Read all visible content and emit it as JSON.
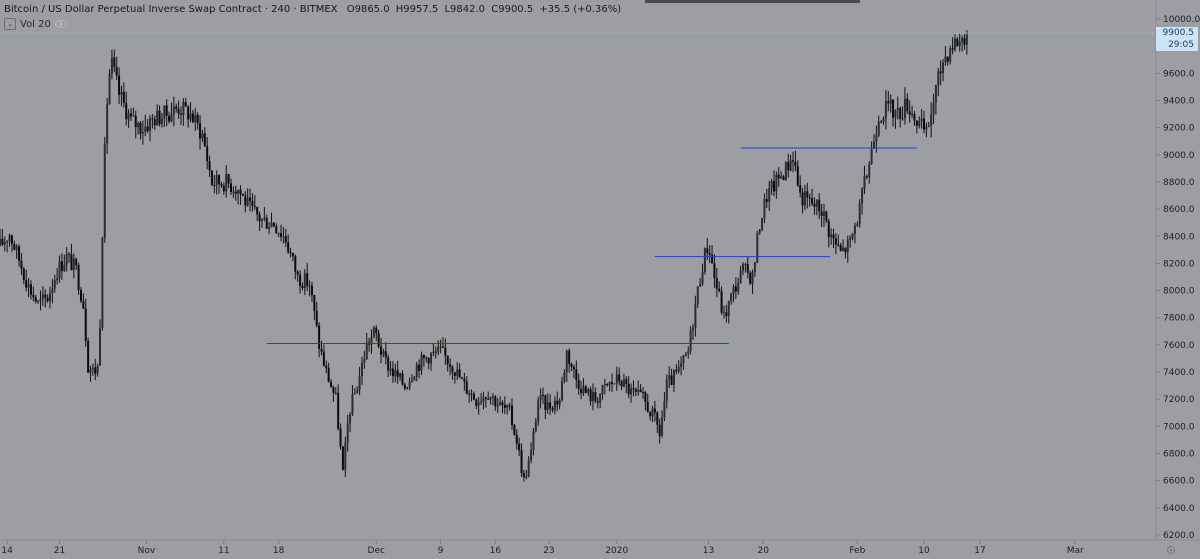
{
  "header": {
    "title": "Bitcoin / US Dollar Perpetual Inverse Swap Contract · 240 · BITMEX",
    "open": "O9865.0",
    "high": "H9957.5",
    "low": "L9842.0",
    "close": "C9900.5",
    "change": "+35.5 (+0.36%)",
    "indicator": "Vol 20"
  },
  "price_tags": {
    "last": "9900.5",
    "countdown": "29:05"
  },
  "colors": {
    "background": "#9d9ea3",
    "candle": "#111114",
    "level_line": "#1f3fcf",
    "price_tag_bg": "#cde3f7",
    "axis_text": "#1e1e22"
  },
  "chart_data": {
    "type": "candlestick",
    "ylim": [
      6200,
      10000
    ],
    "y_ticks": [
      "10000.0",
      "9800.0",
      "9600.0",
      "9400.0",
      "9200.0",
      "9000.0",
      "8800.0",
      "8600.0",
      "8400.0",
      "8200.0",
      "8000.0",
      "7800.0",
      "7600.0",
      "7400.0",
      "7200.0",
      "7000.0",
      "6800.0",
      "6600.0",
      "6400.0",
      "6200.0"
    ],
    "x_ticks": [
      "14",
      "21",
      "Nov",
      "11",
      "18",
      "Dec",
      "9",
      "16",
      "23",
      "2020",
      "13",
      "20",
      "Feb",
      "10",
      "17",
      "Mar"
    ],
    "grid": false,
    "price_path": [
      {
        "x": 0.0,
        "y": 8330
      },
      {
        "x": 0.8,
        "y": 8420
      },
      {
        "x": 1.6,
        "y": 8230
      },
      {
        "x": 2.4,
        "y": 8030
      },
      {
        "x": 3.2,
        "y": 7900
      },
      {
        "x": 4.0,
        "y": 7950
      },
      {
        "x": 4.8,
        "y": 8150
      },
      {
        "x": 5.6,
        "y": 8250
      },
      {
        "x": 6.4,
        "y": 8150
      },
      {
        "x": 7.0,
        "y": 7900
      },
      {
        "x": 7.4,
        "y": 7450
      },
      {
        "x": 7.9,
        "y": 7400
      },
      {
        "x": 8.3,
        "y": 7450
      },
      {
        "x": 8.6,
        "y": 8450
      },
      {
        "x": 8.9,
        "y": 9300
      },
      {
        "x": 9.3,
        "y": 9700
      },
      {
        "x": 10.0,
        "y": 9450
      },
      {
        "x": 11.0,
        "y": 9250
      },
      {
        "x": 12.0,
        "y": 9200
      },
      {
        "x": 13.0,
        "y": 9270
      },
      {
        "x": 14.0,
        "y": 9300
      },
      {
        "x": 15.0,
        "y": 9350
      },
      {
        "x": 16.0,
        "y": 9300
      },
      {
        "x": 17.0,
        "y": 9150
      },
      {
        "x": 17.8,
        "y": 8800
      },
      {
        "x": 19.0,
        "y": 8800
      },
      {
        "x": 20.0,
        "y": 8750
      },
      {
        "x": 21.0,
        "y": 8600
      },
      {
        "x": 22.0,
        "y": 8520
      },
      {
        "x": 23.0,
        "y": 8500
      },
      {
        "x": 24.0,
        "y": 8380
      },
      {
        "x": 25.0,
        "y": 8100
      },
      {
        "x": 26.0,
        "y": 8050
      },
      {
        "x": 26.8,
        "y": 7600
      },
      {
        "x": 27.4,
        "y": 7400
      },
      {
        "x": 28.2,
        "y": 7200
      },
      {
        "x": 28.8,
        "y": 6650
      },
      {
        "x": 29.3,
        "y": 7100
      },
      {
        "x": 30.0,
        "y": 7300
      },
      {
        "x": 30.8,
        "y": 7600
      },
      {
        "x": 31.5,
        "y": 7700
      },
      {
        "x": 32.2,
        "y": 7500
      },
      {
        "x": 33.0,
        "y": 7400
      },
      {
        "x": 34.0,
        "y": 7300
      },
      {
        "x": 35.0,
        "y": 7450
      },
      {
        "x": 36.0,
        "y": 7520
      },
      {
        "x": 37.0,
        "y": 7550
      },
      {
        "x": 38.0,
        "y": 7450
      },
      {
        "x": 39.0,
        "y": 7300
      },
      {
        "x": 40.0,
        "y": 7200
      },
      {
        "x": 41.0,
        "y": 7250
      },
      {
        "x": 42.0,
        "y": 7150
      },
      {
        "x": 42.8,
        "y": 7100
      },
      {
        "x": 43.4,
        "y": 6900
      },
      {
        "x": 44.0,
        "y": 6600
      },
      {
        "x": 44.6,
        "y": 6800
      },
      {
        "x": 45.2,
        "y": 7200
      },
      {
        "x": 46.0,
        "y": 7150
      },
      {
        "x": 47.0,
        "y": 7200
      },
      {
        "x": 47.6,
        "y": 7550
      },
      {
        "x": 48.4,
        "y": 7350
      },
      {
        "x": 49.2,
        "y": 7250
      },
      {
        "x": 50.0,
        "y": 7200
      },
      {
        "x": 51.0,
        "y": 7300
      },
      {
        "x": 52.0,
        "y": 7350
      },
      {
        "x": 53.0,
        "y": 7250
      },
      {
        "x": 54.0,
        "y": 7200
      },
      {
        "x": 55.0,
        "y": 7050
      },
      {
        "x": 55.4,
        "y": 6950
      },
      {
        "x": 56.0,
        "y": 7300
      },
      {
        "x": 57.0,
        "y": 7400
      },
      {
        "x": 57.8,
        "y": 7550
      },
      {
        "x": 58.4,
        "y": 7900
      },
      {
        "x": 59.0,
        "y": 8200
      },
      {
        "x": 59.5,
        "y": 8350
      },
      {
        "x": 60.0,
        "y": 8100
      },
      {
        "x": 60.8,
        "y": 7800
      },
      {
        "x": 61.6,
        "y": 8000
      },
      {
        "x": 62.4,
        "y": 8150
      },
      {
        "x": 63.2,
        "y": 8100
      },
      {
        "x": 63.8,
        "y": 8500
      },
      {
        "x": 64.4,
        "y": 8700
      },
      {
        "x": 65.2,
        "y": 8800
      },
      {
        "x": 66.0,
        "y": 8900
      },
      {
        "x": 66.6,
        "y": 9000
      },
      {
        "x": 67.2,
        "y": 8700
      },
      {
        "x": 68.0,
        "y": 8650
      },
      {
        "x": 69.0,
        "y": 8600
      },
      {
        "x": 69.8,
        "y": 8400
      },
      {
        "x": 70.6,
        "y": 8280
      },
      {
        "x": 71.4,
        "y": 8350
      },
      {
        "x": 72.2,
        "y": 8600
      },
      {
        "x": 73.0,
        "y": 8950
      },
      {
        "x": 73.8,
        "y": 9300
      },
      {
        "x": 74.6,
        "y": 9350
      },
      {
        "x": 75.4,
        "y": 9300
      },
      {
        "x": 76.2,
        "y": 9380
      },
      {
        "x": 77.0,
        "y": 9250
      },
      {
        "x": 77.8,
        "y": 9150
      },
      {
        "x": 78.4,
        "y": 9400
      },
      {
        "x": 79.2,
        "y": 9700
      },
      {
        "x": 80.0,
        "y": 9820
      },
      {
        "x": 80.8,
        "y": 9850
      },
      {
        "x": 81.2,
        "y": 9900
      }
    ],
    "x_domain": [
      0,
      97
    ],
    "tick_positions": [
      0.6,
      5.0,
      12.3,
      18.8,
      23.4,
      31.6,
      37.0,
      41.6,
      46.1,
      51.8,
      59.5,
      64.1,
      72.0,
      77.6,
      82.3,
      90.3
    ],
    "levels": [
      {
        "y": 7610,
        "x0": 22.4,
        "x1": 61.2
      },
      {
        "y": 8250,
        "x0": 55.0,
        "x1": 69.7
      },
      {
        "y": 9050,
        "x0": 62.2,
        "x1": 77.0
      }
    ]
  }
}
